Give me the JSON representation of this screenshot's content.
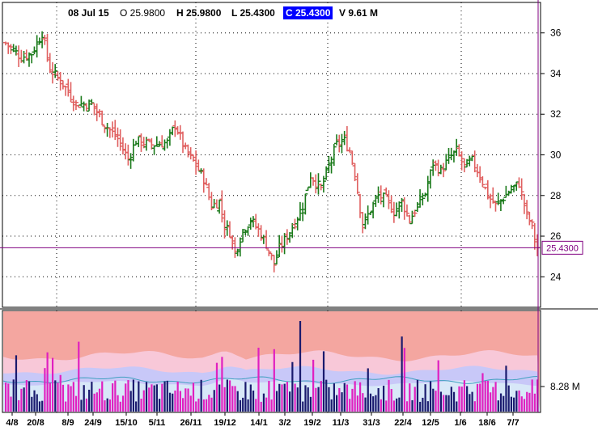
{
  "header": {
    "date": "08 Jul 15",
    "open": "O 25.9800",
    "high": "H 25.9800",
    "low": "L 25.4300",
    "close": "C 25.4300",
    "volume": "V 9.61 M"
  },
  "colors": {
    "up": "#1a7a1a",
    "down": "#e06060",
    "crosshair": "#800080",
    "volume_up": "#1a1a6e",
    "volume_down": "#e020c0",
    "band_outer": "#f4a6a0",
    "band_mid": "#f8c8d8",
    "band_inner": "#c8c8f8"
  },
  "chart_data": [
    {
      "type": "ohlc",
      "x_ticks": [
        "4/8",
        "20/8",
        "8/9",
        "24/9",
        "15/10",
        "5/11",
        "26/11",
        "19/12",
        "14/1",
        "3/2",
        "19/2",
        "11/3",
        "31/3",
        "22/4",
        "12/5",
        "1/6",
        "18/6",
        "7/7"
      ],
      "y_ticks": [
        24,
        26,
        28,
        30,
        32,
        34,
        36
      ],
      "ylim": [
        22.5,
        37.5
      ],
      "last_price_label": "25.4300",
      "crosshair_price": 25.43,
      "close_path": [
        {
          "bar": 0,
          "close": 35.5
        },
        {
          "bar": 6,
          "close": 34.8
        },
        {
          "bar": 10,
          "close": 35.0
        },
        {
          "bar": 12,
          "close": 35.5
        },
        {
          "bar": 14,
          "close": 36.0
        },
        {
          "bar": 17,
          "close": 34.2
        },
        {
          "bar": 22,
          "close": 33.5
        },
        {
          "bar": 27,
          "close": 32.5
        },
        {
          "bar": 33,
          "close": 32.5
        },
        {
          "bar": 38,
          "close": 31.5
        },
        {
          "bar": 43,
          "close": 30.8
        },
        {
          "bar": 47,
          "close": 29.8
        },
        {
          "bar": 50,
          "close": 30.7
        },
        {
          "bar": 56,
          "close": 30.5
        },
        {
          "bar": 62,
          "close": 30.6
        },
        {
          "bar": 65,
          "close": 31.5
        },
        {
          "bar": 69,
          "close": 30.2
        },
        {
          "bar": 73,
          "close": 29.5
        },
        {
          "bar": 76,
          "close": 28.8
        },
        {
          "bar": 79,
          "close": 27.5
        },
        {
          "bar": 82,
          "close": 27.7
        },
        {
          "bar": 84,
          "close": 26.5
        },
        {
          "bar": 86,
          "close": 26.2
        },
        {
          "bar": 88,
          "close": 25.2
        },
        {
          "bar": 91,
          "close": 26.3
        },
        {
          "bar": 94,
          "close": 26.8
        },
        {
          "bar": 97,
          "close": 26.3
        },
        {
          "bar": 100,
          "close": 25.6
        },
        {
          "bar": 103,
          "close": 24.6
        },
        {
          "bar": 105,
          "close": 25.4
        },
        {
          "bar": 108,
          "close": 26.0
        },
        {
          "bar": 111,
          "close": 26.7
        },
        {
          "bar": 114,
          "close": 27.5
        },
        {
          "bar": 117,
          "close": 29.0
        },
        {
          "bar": 121,
          "close": 28.3
        },
        {
          "bar": 124,
          "close": 29.5
        },
        {
          "bar": 127,
          "close": 30.5
        },
        {
          "bar": 130,
          "close": 30.7
        },
        {
          "bar": 132,
          "close": 30.2
        },
        {
          "bar": 134,
          "close": 29.1
        },
        {
          "bar": 137,
          "close": 26.5
        },
        {
          "bar": 140,
          "close": 27.3
        },
        {
          "bar": 143,
          "close": 28.0
        },
        {
          "bar": 146,
          "close": 27.8
        },
        {
          "bar": 149,
          "close": 27.2
        },
        {
          "bar": 152,
          "close": 27.7
        },
        {
          "bar": 155,
          "close": 26.8
        },
        {
          "bar": 158,
          "close": 27.5
        },
        {
          "bar": 161,
          "close": 28.1
        },
        {
          "bar": 164,
          "close": 29.6
        },
        {
          "bar": 167,
          "close": 29.2
        },
        {
          "bar": 170,
          "close": 29.8
        },
        {
          "bar": 173,
          "close": 30.2
        },
        {
          "bar": 176,
          "close": 29.4
        },
        {
          "bar": 179,
          "close": 29.7
        },
        {
          "bar": 182,
          "close": 29.0
        },
        {
          "bar": 185,
          "close": 28.0
        },
        {
          "bar": 188,
          "close": 27.5
        },
        {
          "bar": 191,
          "close": 27.9
        },
        {
          "bar": 194,
          "close": 28.3
        },
        {
          "bar": 197,
          "close": 28.6
        },
        {
          "bar": 200,
          "close": 27.0
        },
        {
          "bar": 202,
          "close": 26.5
        },
        {
          "bar": 203,
          "close": 25.8
        },
        {
          "bar": 204,
          "close": 25.43
        }
      ]
    },
    {
      "type": "volume",
      "y_label": "8.28 M"
    }
  ]
}
